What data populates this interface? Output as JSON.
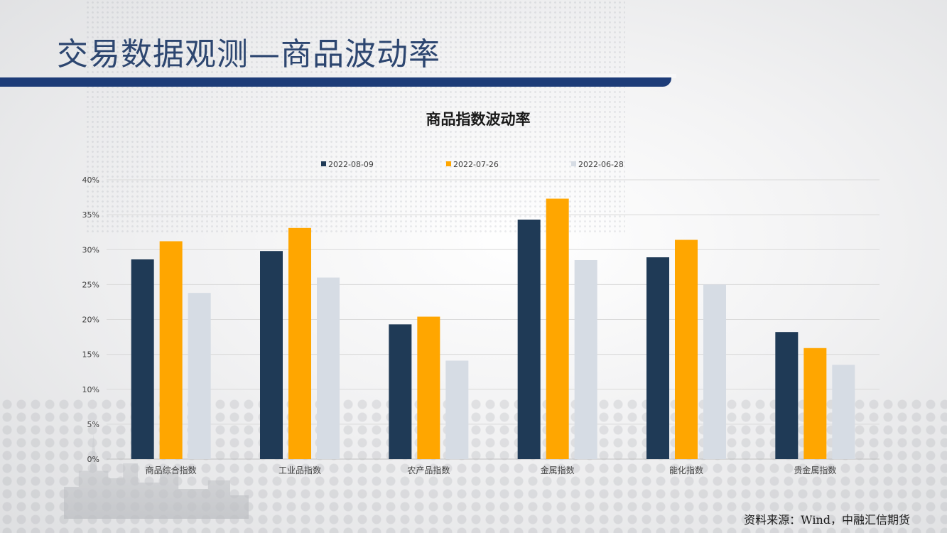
{
  "page": {
    "title": "交易数据观测—商品波动率",
    "source": "资料来源：Wind，中融汇信期货"
  },
  "colors": {
    "title": "#2d4670",
    "title_bar": "#1d3c78",
    "series": [
      "#1f3a56",
      "#ffa600",
      "#d6dce4"
    ]
  },
  "chart_data": {
    "type": "bar",
    "title": "商品指数波动率",
    "xlabel": "",
    "ylabel": "",
    "categories": [
      "商品综合指数",
      "工业品指数",
      "农产品指数",
      "金属指数",
      "能化指数",
      "贵金属指数"
    ],
    "series": [
      {
        "name": "2022-08-09",
        "values": [
          28.6,
          29.8,
          19.3,
          34.3,
          28.9,
          18.2
        ]
      },
      {
        "name": "2022-07-26",
        "values": [
          31.2,
          33.1,
          20.4,
          37.3,
          31.4,
          15.9
        ]
      },
      {
        "name": "2022-06-28",
        "values": [
          23.8,
          26.0,
          14.1,
          28.5,
          25.0,
          13.5
        ]
      }
    ],
    "ylim": [
      0,
      40
    ],
    "yticks": [
      "0%",
      "5%",
      "10%",
      "15%",
      "20%",
      "25%",
      "30%",
      "35%",
      "40%"
    ],
    "grid": true,
    "legend_position": "top"
  }
}
